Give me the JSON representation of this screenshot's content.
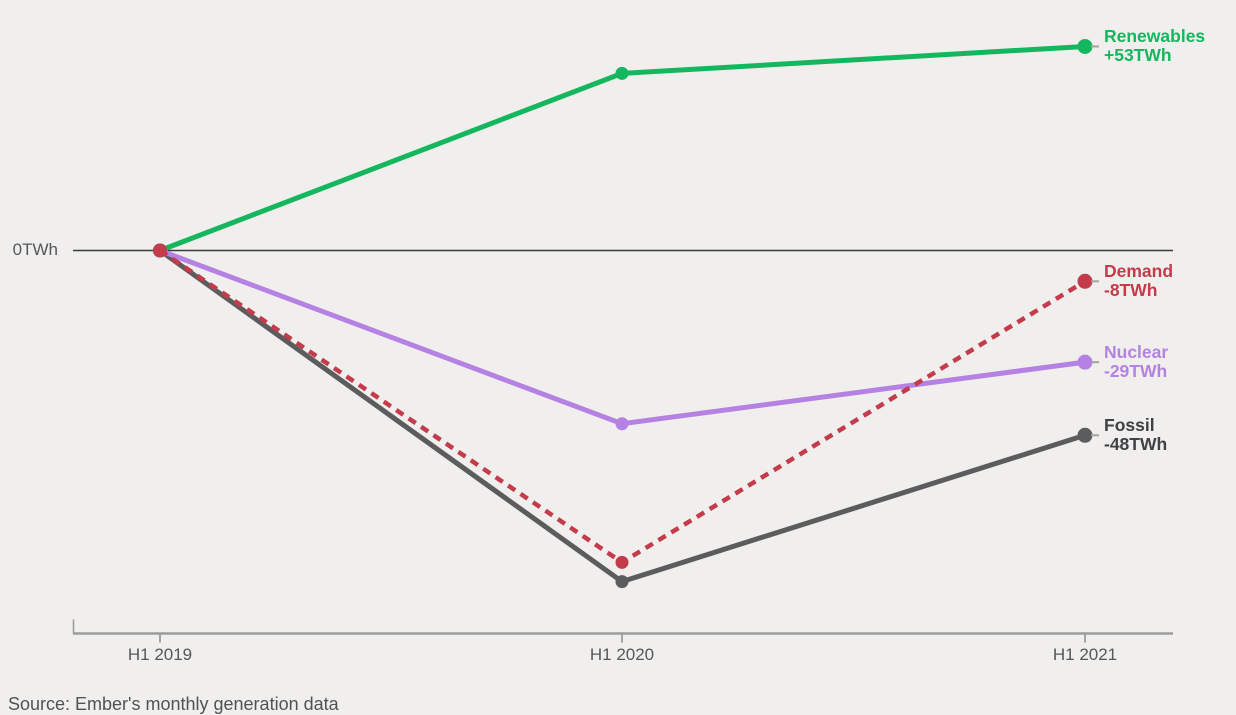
{
  "chart_data": {
    "type": "line",
    "title": "",
    "categories": [
      "H1 2019",
      "H1 2020",
      "H1 2021"
    ],
    "unit": "TWh",
    "zero_label": "0TWh",
    "ylim": [
      -99,
      65
    ],
    "grid": false,
    "legend_position": "right-end-labels",
    "series": [
      {
        "name": "Renewables",
        "values": [
          0,
          46,
          53
        ],
        "label_name": "Renewables",
        "label_value": "+53TWh",
        "color": "#15b75e",
        "style": "solid"
      },
      {
        "name": "Demand",
        "values": [
          0,
          -81,
          -8
        ],
        "label_name": "Demand",
        "label_value": "-8TWh",
        "color": "#c43b4c",
        "style": "dashed"
      },
      {
        "name": "Nuclear",
        "values": [
          0,
          -45,
          -29
        ],
        "label_name": "Nuclear",
        "label_value": "-29TWh",
        "color": "#b581e2",
        "style": "solid"
      },
      {
        "name": "Fossil",
        "values": [
          0,
          -86,
          -48
        ],
        "label_name": "Fossil",
        "label_value": "-48TWh",
        "color": "#5c5c5e",
        "style": "solid",
        "label_color": "#3f4145"
      }
    ],
    "source": "Source: Ember's monthly generation data"
  },
  "colors": {
    "background": "#f0efed",
    "zero_line": "#3a3a3a",
    "axis_line": "#9c9c9c",
    "tick_text": "#54575b",
    "source_text": "#505356",
    "label_dash": "#a3a3a3"
  }
}
